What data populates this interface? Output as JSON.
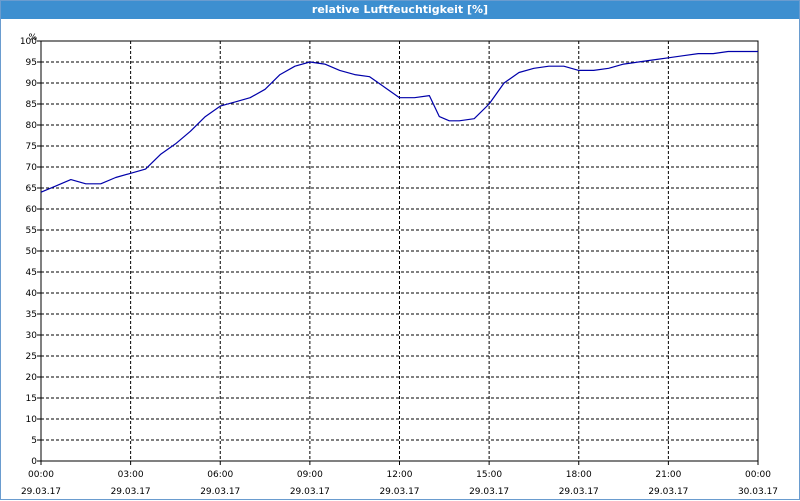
{
  "window": {
    "title": "relative Luftfeuchtigkeit [%]"
  },
  "chart_data": {
    "type": "line",
    "title": "relative Luftfeuchtigkeit [%]",
    "ylabel": "%",
    "xlabel": "",
    "ylim": [
      0,
      100
    ],
    "y_ticks": [
      0,
      5,
      10,
      15,
      20,
      25,
      30,
      35,
      40,
      45,
      50,
      55,
      60,
      65,
      70,
      75,
      80,
      85,
      90,
      95,
      100
    ],
    "x_ticks": [
      {
        "time": "00:00",
        "date": "29.03.17"
      },
      {
        "time": "03:00",
        "date": "29.03.17"
      },
      {
        "time": "06:00",
        "date": "29.03.17"
      },
      {
        "time": "09:00",
        "date": "29.03.17"
      },
      {
        "time": "12:00",
        "date": "29.03.17"
      },
      {
        "time": "15:00",
        "date": "29.03.17"
      },
      {
        "time": "18:00",
        "date": "29.03.17"
      },
      {
        "time": "21:00",
        "date": "29.03.17"
      },
      {
        "time": "00:00",
        "date": "30.03.17"
      }
    ],
    "grid": true,
    "line_color": "#0000aa",
    "series": [
      {
        "x": [
          "00:00",
          "00:30",
          "01:00",
          "01:30",
          "02:00",
          "02:30",
          "03:00",
          "03:30",
          "04:00",
          "04:30",
          "05:00",
          "05:30",
          "06:00",
          "06:30",
          "07:00",
          "07:30",
          "08:00",
          "08:30",
          "09:00",
          "09:30",
          "10:00",
          "10:30",
          "11:00",
          "11:30",
          "12:00",
          "12:30",
          "13:00",
          "13:20",
          "13:40",
          "14:00",
          "14:30",
          "15:00",
          "15:30",
          "16:00",
          "16:30",
          "17:00",
          "17:30",
          "18:00",
          "18:30",
          "19:00",
          "19:30",
          "20:00",
          "20:30",
          "21:00",
          "21:30",
          "22:00",
          "22:30",
          "23:00",
          "23:30",
          "24:00"
        ],
        "values": [
          64,
          65.5,
          67,
          66,
          66,
          67.5,
          68.5,
          69.5,
          73,
          75.5,
          78.5,
          82,
          84.5,
          85.5,
          86.5,
          88.5,
          92,
          94,
          95,
          94.5,
          93,
          92,
          91.5,
          89,
          86.5,
          86.5,
          87,
          82,
          81,
          81,
          81.5,
          85,
          90,
          92.5,
          93.5,
          94,
          94,
          93,
          93,
          93.5,
          94.5,
          95,
          95.5,
          96,
          96.5,
          97,
          97,
          97.5,
          97.5,
          97.5
        ]
      }
    ]
  }
}
